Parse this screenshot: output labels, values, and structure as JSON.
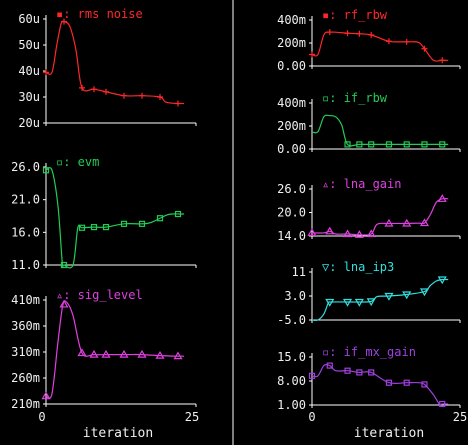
{
  "colors": {
    "background": "#000000",
    "axis": "#ffffff",
    "text": "#f0f0f0",
    "red": "#ff2828",
    "green": "#22cc55",
    "magenta": "#e040e0",
    "cyan": "#30e0e0",
    "purple": "#a040e0"
  },
  "chart_data": [
    {
      "type": "line",
      "name": "rms noise",
      "legend_label": "rms noise",
      "marker_glyph": "▪",
      "color": "#ff2828",
      "marker": "plus",
      "yticks": [
        "60u",
        "50u",
        "40u",
        "30u",
        "20u"
      ],
      "ylim": [
        20,
        60
      ],
      "xlim": [
        0,
        25
      ],
      "xticks": [],
      "xlabel": "",
      "markers_x": [
        0,
        3,
        6,
        8,
        10,
        13,
        16,
        19,
        22
      ],
      "x": [
        0,
        1,
        1.8,
        2.5,
        3,
        4,
        5,
        6,
        8,
        10,
        13,
        16,
        19,
        20,
        22,
        23
      ],
      "y": [
        39.5,
        39.5,
        50,
        58,
        59,
        57,
        48,
        33.5,
        33,
        32,
        30.5,
        30.5,
        30,
        28,
        27.5,
        27.5
      ]
    },
    {
      "type": "line",
      "name": "evm",
      "legend_label": "evm",
      "marker_glyph": "▫",
      "color": "#22cc55",
      "marker": "square",
      "yticks": [
        "26.0",
        "21.0",
        "16.0",
        "11.0"
      ],
      "ylim": [
        11,
        26
      ],
      "xlim": [
        0,
        25
      ],
      "xticks": [],
      "xlabel": "",
      "markers_x": [
        0,
        3,
        6,
        8,
        10,
        13,
        16,
        19,
        22
      ],
      "x": [
        0,
        1,
        2,
        2.7,
        3,
        4.5,
        5.3,
        6,
        8,
        10,
        13,
        16,
        17.5,
        20,
        21,
        23
      ],
      "y": [
        25.5,
        25.5,
        20,
        11.5,
        11,
        11,
        16.7,
        16.7,
        16.8,
        16.8,
        17.3,
        17.3,
        17.5,
        18.6,
        18.8,
        18.8
      ]
    },
    {
      "type": "line",
      "name": "sig_level",
      "legend_label": "sig_level",
      "marker_glyph": "▵",
      "color": "#e040e0",
      "marker": "triangle-up",
      "yticks": [
        "410m",
        "360m",
        "310m",
        "260m",
        "210m"
      ],
      "ylim": [
        210,
        410
      ],
      "xlim": [
        0,
        25
      ],
      "xticks": [],
      "xlabel": "",
      "markers_x": [
        0,
        3,
        6,
        8,
        10,
        13,
        16,
        19,
        22
      ],
      "x": [
        0,
        1,
        2,
        2.8,
        3.5,
        4.5,
        6,
        8,
        10,
        13,
        16,
        19,
        22,
        23
      ],
      "y": [
        225,
        230,
        330,
        400,
        405,
        380,
        308,
        305,
        305,
        305,
        305,
        303,
        302,
        302
      ]
    },
    {
      "type": "line",
      "name": "rf_rbw",
      "legend_label": "rf_rbw",
      "marker_glyph": "▪",
      "color": "#ff2828",
      "marker": "plus",
      "yticks": [
        "400m",
        "200m",
        "0.00"
      ],
      "ylim": [
        0,
        400
      ],
      "xlim": [
        0,
        25
      ],
      "xticks": [],
      "xlabel": "",
      "markers_x": [
        0,
        3,
        6,
        8,
        10,
        13,
        16,
        19,
        22
      ],
      "x": [
        0,
        1,
        2,
        3,
        6,
        8,
        10,
        13,
        16,
        18,
        19,
        20.5,
        22,
        23
      ],
      "y": [
        100,
        100,
        270,
        295,
        285,
        280,
        270,
        215,
        210,
        205,
        150,
        50,
        50,
        50
      ]
    },
    {
      "type": "line",
      "name": "if_rbw",
      "legend_label": "if_rbw",
      "marker_glyph": "▫",
      "color": "#22cc55",
      "marker": "square",
      "yticks": [
        "400m",
        "200m",
        "0.00"
      ],
      "ylim": [
        0,
        400
      ],
      "xlim": [
        0,
        25
      ],
      "xticks": [],
      "xlabel": "",
      "markers_x": [
        6,
        8,
        10,
        13,
        16,
        19,
        22
      ],
      "x": [
        0,
        1,
        2,
        3,
        4,
        5,
        6,
        8,
        10,
        13,
        16,
        19,
        22,
        23
      ],
      "y": [
        150,
        150,
        280,
        290,
        280,
        210,
        40,
        40,
        40,
        40,
        40,
        40,
        40,
        40
      ]
    },
    {
      "type": "line",
      "name": "lna_gain",
      "legend_label": "lna_gain",
      "marker_glyph": "▵",
      "color": "#e040e0",
      "marker": "triangle-up",
      "yticks": [
        "26.0",
        "20.0",
        "14.0"
      ],
      "ylim": [
        14,
        26
      ],
      "xlim": [
        0,
        25
      ],
      "xticks": [],
      "xlabel": "",
      "markers_x": [
        0,
        3,
        6,
        8,
        10,
        13,
        16,
        19,
        22
      ],
      "x": [
        0,
        2,
        3,
        4,
        6,
        8,
        10,
        11,
        13,
        16,
        18,
        19,
        20,
        21,
        22,
        23
      ],
      "y": [
        14.8,
        14.8,
        15.2,
        14.5,
        14.5,
        14.3,
        14.5,
        17,
        17.2,
        17.2,
        17.3,
        17.3,
        19.5,
        22.6,
        23.5,
        23.5
      ]
    },
    {
      "type": "line",
      "name": "lna_ip3",
      "legend_label": "lna_ip3",
      "marker_glyph": "▽",
      "color": "#30e0e0",
      "marker": "triangle-down",
      "yticks": [
        "11",
        "3.0",
        "-5.0"
      ],
      "ylim": [
        -5,
        11
      ],
      "xlim": [
        0,
        25
      ],
      "xticks": [],
      "xlabel": "",
      "markers_x": [
        3,
        6,
        8,
        10,
        13,
        16,
        19,
        22
      ],
      "x": [
        0,
        1,
        2,
        2.7,
        3,
        6,
        8,
        10,
        11,
        13,
        16,
        19,
        20,
        21,
        22,
        23
      ],
      "y": [
        -5,
        -5,
        -3,
        0.5,
        1,
        1,
        1,
        1.2,
        2.8,
        3,
        3.5,
        4.5,
        6.5,
        8,
        8.5,
        8.5
      ]
    },
    {
      "type": "line",
      "name": "if_mx_gain",
      "legend_label": "if_mx_gain",
      "marker_glyph": "▫",
      "color": "#a040e0",
      "marker": "square",
      "yticks": [
        "15.0",
        "8.00",
        "1.00"
      ],
      "ylim": [
        1,
        15
      ],
      "xlim": [
        0,
        25
      ],
      "xticks": [
        "0",
        "25"
      ],
      "xlabel": "iteration",
      "markers_x": [
        0,
        3,
        6,
        8,
        10,
        13,
        16,
        19,
        22
      ],
      "x": [
        0,
        1,
        2,
        3,
        4,
        6,
        8,
        10,
        13,
        16,
        18,
        19,
        20.5,
        21.5,
        22,
        23
      ],
      "y": [
        9.5,
        9.5,
        12.5,
        12.5,
        11,
        11,
        10.5,
        10.5,
        7.5,
        7.5,
        7.5,
        7,
        4,
        1.3,
        1.3,
        1.3
      ]
    }
  ],
  "left_column_xaxis": {
    "xticks": [
      "0",
      "25"
    ],
    "xlabel": "iteration"
  }
}
